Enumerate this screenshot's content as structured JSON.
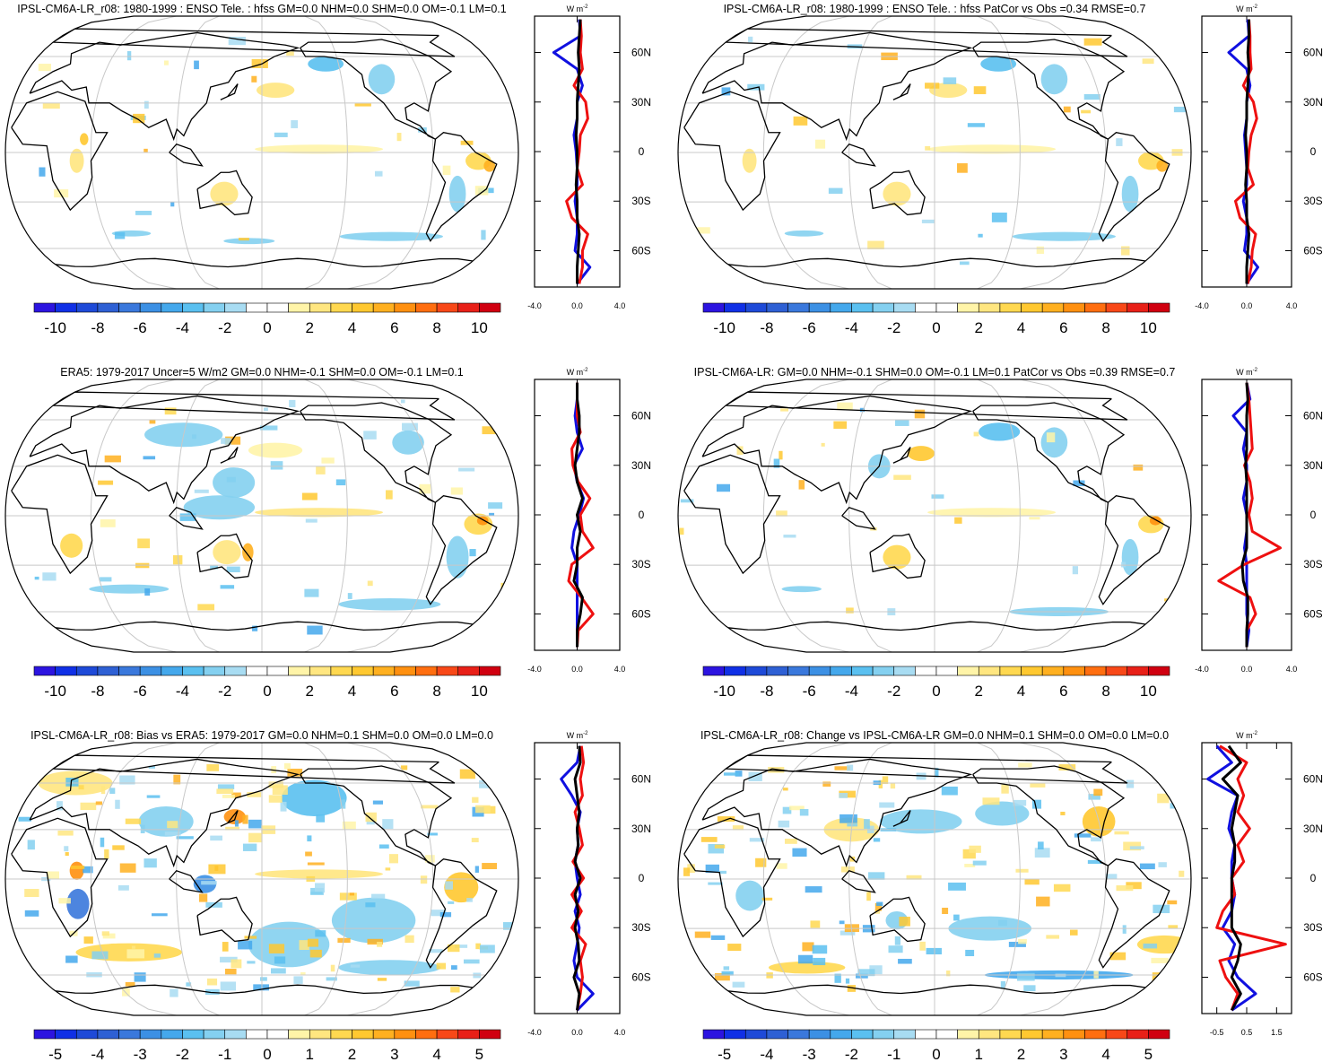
{
  "chart_data": [
    {
      "type": "map",
      "title": "IPSL-CM6A-LR_r08: 1980-1999 : ENSO Tele. : hfss GM=0.0 NHM=0.0 SHM=0.0 OM=-0.1 LM=0.1",
      "colorbar": {
        "clim": [
          -11,
          11
        ],
        "ticks": [
          -10,
          -8,
          -6,
          -4,
          -2,
          0,
          2,
          4,
          6,
          8,
          10
        ],
        "colors": [
          "#2c14e0",
          "#1030e6",
          "#1e4ad8",
          "#2e60d4",
          "#3a78dc",
          "#3c90e4",
          "#44a8ec",
          "#5ac0f0",
          "#84d0f0",
          "#a8dcf2",
          "#ffffff",
          "#ffffff",
          "#fff4a8",
          "#ffe680",
          "#ffd850",
          "#ffc830",
          "#ffb020",
          "#ff9010",
          "#ff6e10",
          "#f84818",
          "#e82018",
          "#d00010"
        ]
      },
      "profile": {
        "units": "W m",
        "units_exp": "-2",
        "xlim": [
          -4,
          4
        ],
        "xticks": [
          {
            "value": -4,
            "label": "-4.0"
          },
          {
            "value": 0,
            "label": "0.0"
          },
          {
            "value": 4,
            "label": "4.0"
          }
        ],
        "ylim": [
          -82,
          82
        ],
        "yticks": [
          {
            "value": -60,
            "label": "60S"
          },
          {
            "value": -30,
            "label": "30S"
          },
          0,
          {
            "value": 30,
            "label": "30N"
          },
          {
            "value": 60,
            "label": "60N"
          }
        ],
        "lats": [
          -80,
          -70,
          -60,
          -50,
          -40,
          -30,
          -20,
          -10,
          0,
          10,
          20,
          30,
          40,
          50,
          60,
          70,
          80
        ],
        "series": [
          {
            "color": "#1010e0",
            "values": [
              0,
              1.2,
              -0.2,
              0,
              0,
              -0.2,
              0,
              0,
              -0.1,
              -0.3,
              0,
              0,
              0.5,
              0,
              -2.2,
              0.3,
              0.2
            ]
          },
          {
            "color": "#ee1010",
            "values": [
              0.2,
              0.5,
              0.5,
              1,
              -0.5,
              -1,
              0.5,
              0,
              0.2,
              0.3,
              1,
              0.8,
              -0.3,
              0.5,
              0.3,
              0.4,
              0.3
            ]
          },
          {
            "color": "#000000",
            "values": [
              0,
              0,
              0.1,
              0.2,
              0,
              0,
              -0.1,
              0,
              0,
              -0.1,
              0,
              0,
              0.1,
              0.2,
              0.1,
              0.2,
              0.3
            ]
          }
        ]
      }
    },
    {
      "type": "map",
      "title": "IPSL-CM6A-LR_r08: 1980-1999 : ENSO Tele. : hfss PatCor vs Obs =0.34 RMSE=0.7",
      "colorbar": {
        "clim": [
          -11,
          11
        ],
        "ticks": [
          -10,
          -8,
          -6,
          -4,
          -2,
          0,
          2,
          4,
          6,
          8,
          10
        ],
        "colors": [
          "#2c14e0",
          "#1030e6",
          "#1e4ad8",
          "#2e60d4",
          "#3a78dc",
          "#3c90e4",
          "#44a8ec",
          "#5ac0f0",
          "#84d0f0",
          "#a8dcf2",
          "#ffffff",
          "#ffffff",
          "#fff4a8",
          "#ffe680",
          "#ffd850",
          "#ffc830",
          "#ffb020",
          "#ff9010",
          "#ff6e10",
          "#f84818",
          "#e82018",
          "#d00010"
        ]
      },
      "profile": {
        "units": "W m",
        "units_exp": "-2",
        "xlim": [
          -4,
          4
        ],
        "xticks": [
          {
            "value": -4,
            "label": "-4.0"
          },
          {
            "value": 0,
            "label": "0.0"
          },
          {
            "value": 4,
            "label": "4.0"
          }
        ],
        "ylim": [
          -82,
          82
        ],
        "yticks": [
          {
            "value": -60,
            "label": "60S"
          },
          {
            "value": -30,
            "label": "30S"
          },
          0,
          {
            "value": 30,
            "label": "30N"
          },
          {
            "value": 60,
            "label": "60N"
          }
        ],
        "lats": [
          -80,
          -70,
          -60,
          -50,
          -40,
          -30,
          -20,
          -10,
          0,
          10,
          20,
          30,
          40,
          50,
          60,
          70,
          80
        ],
        "series": [
          {
            "color": "#1010e0",
            "values": [
              0,
              1,
              -0.2,
              0,
              0,
              -0.3,
              0,
              0,
              -0.1,
              -0.2,
              0,
              0,
              0.3,
              0,
              -1.6,
              0.2,
              0.1
            ]
          },
          {
            "color": "#ee1010",
            "values": [
              0.1,
              0.4,
              0.5,
              0.8,
              -0.6,
              -1,
              0.6,
              0.1,
              0.2,
              0.4,
              0.9,
              0.6,
              -0.3,
              0.4,
              0.3,
              0.3,
              0.2
            ]
          },
          {
            "color": "#000000",
            "values": [
              0,
              0,
              0.1,
              0.2,
              0,
              0,
              -0.1,
              0,
              0,
              -0.1,
              0,
              0,
              0.1,
              0.2,
              0.1,
              0.2,
              0.2
            ]
          }
        ]
      }
    },
    {
      "type": "map",
      "title": "ERA5: 1979-2017 Uncer=5 W/m2 GM=0.0 NHM=-0.1 SHM=0.0 OM=-0.1 LM=0.1",
      "colorbar": {
        "clim": [
          -11,
          11
        ],
        "ticks": [
          -10,
          -8,
          -6,
          -4,
          -2,
          0,
          2,
          4,
          6,
          8,
          10
        ],
        "colors": [
          "#2c14e0",
          "#1030e6",
          "#1e4ad8",
          "#2e60d4",
          "#3a78dc",
          "#3c90e4",
          "#44a8ec",
          "#5ac0f0",
          "#84d0f0",
          "#a8dcf2",
          "#ffffff",
          "#ffffff",
          "#fff4a8",
          "#ffe680",
          "#ffd850",
          "#ffc830",
          "#ffb020",
          "#ff9010",
          "#ff6e10",
          "#f84818",
          "#e82018",
          "#d00010"
        ]
      },
      "profile": {
        "units": "W m",
        "units_exp": "-2",
        "xlim": [
          -4,
          4
        ],
        "xticks": [
          {
            "value": -4,
            "label": "-4.0"
          },
          {
            "value": 0,
            "label": "0.0"
          },
          {
            "value": 4,
            "label": "4.0"
          }
        ],
        "ylim": [
          -82,
          82
        ],
        "yticks": [
          {
            "value": -60,
            "label": "60S"
          },
          {
            "value": -30,
            "label": "30S"
          },
          0,
          {
            "value": 30,
            "label": "30N"
          },
          {
            "value": 60,
            "label": "60N"
          }
        ],
        "lats": [
          -80,
          -70,
          -60,
          -50,
          -40,
          -30,
          -20,
          -10,
          0,
          10,
          20,
          30,
          40,
          50,
          60,
          70,
          80
        ],
        "series": [
          {
            "color": "#1010e0",
            "values": [
              0,
              0,
              0,
              0,
              0,
              0,
              -0.5,
              -0.3,
              0.2,
              0.6,
              0,
              -0.3,
              0.5,
              0,
              -0.2,
              0,
              0
            ]
          },
          {
            "color": "#ee1010",
            "values": [
              0,
              0.1,
              1.5,
              0.4,
              -0.8,
              -0.5,
              1.5,
              0.5,
              0.3,
              1.2,
              0.1,
              -0.4,
              -0.5,
              0.3,
              0,
              0,
              0
            ]
          },
          {
            "color": "#000000",
            "values": [
              0,
              0,
              0.3,
              0.5,
              -0.3,
              0,
              0,
              0.3,
              0,
              0.5,
              0,
              -0.2,
              0,
              0.2,
              0.2,
              0,
              0
            ]
          }
        ]
      }
    },
    {
      "type": "map",
      "title": "IPSL-CM6A-LR: GM=0.0 NHM=-0.1 SHM=0.0 OM=-0.1 LM=0.1 PatCor vs Obs =0.39 RMSE=0.7",
      "colorbar": {
        "clim": [
          -11,
          11
        ],
        "ticks": [
          -10,
          -8,
          -6,
          -4,
          -2,
          0,
          2,
          4,
          6,
          8,
          10
        ],
        "colors": [
          "#2c14e0",
          "#1030e6",
          "#1e4ad8",
          "#2e60d4",
          "#3a78dc",
          "#3c90e4",
          "#44a8ec",
          "#5ac0f0",
          "#84d0f0",
          "#a8dcf2",
          "#ffffff",
          "#ffffff",
          "#fff4a8",
          "#ffe680",
          "#ffd850",
          "#ffc830",
          "#ffb020",
          "#ff9010",
          "#ff6e10",
          "#f84818",
          "#e82018",
          "#d00010"
        ]
      },
      "profile": {
        "units": "W m",
        "units_exp": "-2",
        "xlim": [
          -4,
          4
        ],
        "xticks": [
          {
            "value": -4,
            "label": "-4.0"
          },
          {
            "value": 0,
            "label": "0.0"
          },
          {
            "value": 4,
            "label": "4.0"
          }
        ],
        "ylim": [
          -82,
          82
        ],
        "yticks": [
          {
            "value": -60,
            "label": "60S"
          },
          {
            "value": -30,
            "label": "30S"
          },
          0,
          {
            "value": 30,
            "label": "30N"
          },
          {
            "value": 60,
            "label": "60N"
          }
        ],
        "lats": [
          -80,
          -70,
          -60,
          -50,
          -40,
          -30,
          -20,
          -10,
          0,
          10,
          20,
          30,
          40,
          50,
          60,
          70,
          80
        ],
        "series": [
          {
            "color": "#1010e0",
            "values": [
              0,
              0.2,
              0,
              0,
              0,
              0,
              -0.2,
              0,
              0,
              -0.3,
              0,
              0,
              -0.3,
              0,
              -1.2,
              0.3,
              0
            ]
          },
          {
            "color": "#ee1010",
            "values": [
              0,
              0,
              0.8,
              0.3,
              -2.5,
              -0.2,
              3,
              0.5,
              0.2,
              0.5,
              0.3,
              -0.2,
              0.5,
              0.4,
              0.3,
              0.2,
              0
            ]
          },
          {
            "color": "#000000",
            "values": [
              0,
              0,
              0.1,
              0.1,
              -0.3,
              -0.4,
              0,
              0,
              0,
              0,
              0,
              -0.1,
              0,
              0,
              0,
              0.1,
              0
            ]
          }
        ]
      }
    },
    {
      "type": "map",
      "title": "IPSL-CM6A-LR_r08: Bias vs ERA5: 1979-2017 GM=0.0 NHM=0.1 SHM=0.0 OM=0.0 LM=0.0",
      "colorbar": {
        "clim": [
          -5.5,
          5.5
        ],
        "ticks": [
          -5,
          -4,
          -3,
          -2,
          -1,
          0,
          1,
          2,
          3,
          4,
          5
        ],
        "colors": [
          "#2c14e0",
          "#1030e6",
          "#1e4ad8",
          "#2e60d4",
          "#3a78dc",
          "#3c90e4",
          "#44a8ec",
          "#5ac0f0",
          "#84d0f0",
          "#a8dcf2",
          "#ffffff",
          "#ffffff",
          "#fff4a8",
          "#ffe680",
          "#ffd850",
          "#ffc830",
          "#ffb020",
          "#ff9010",
          "#ff6e10",
          "#f84818",
          "#e82018",
          "#d00010"
        ]
      },
      "profile": {
        "units": "W m",
        "units_exp": "-2",
        "xlim": [
          -4,
          4
        ],
        "xticks": [
          {
            "value": -4,
            "label": "-4.0"
          },
          {
            "value": 0,
            "label": "0.0"
          },
          {
            "value": 4,
            "label": "4.0"
          }
        ],
        "ylim": [
          -82,
          82
        ],
        "yticks": [
          {
            "value": -60,
            "label": "60S"
          },
          {
            "value": -30,
            "label": "30S"
          },
          0,
          {
            "value": 30,
            "label": "30N"
          },
          {
            "value": 60,
            "label": "60N"
          }
        ],
        "lats": [
          -80,
          -70,
          -60,
          -50,
          -40,
          -30,
          -20,
          -10,
          0,
          10,
          20,
          30,
          40,
          50,
          60,
          70,
          80
        ],
        "series": [
          {
            "color": "#1010e0",
            "values": [
              0,
              1.5,
              0,
              -0.3,
              0,
              0.2,
              -0.2,
              0.3,
              0,
              -0.2,
              0.1,
              0,
              0.3,
              -0.5,
              -1.5,
              0,
              0.3
            ]
          },
          {
            "color": "#ee1010",
            "values": [
              0,
              0.3,
              0.5,
              0.3,
              0.8,
              -0.5,
              0.4,
              -0.5,
              0.6,
              -0.4,
              0.5,
              0.2,
              -0.2,
              0.5,
              0.3,
              0.6,
              0.4
            ]
          },
          {
            "color": "#000000",
            "values": [
              0,
              0.2,
              -0.3,
              0.2,
              0.1,
              -0.2,
              0.1,
              -0.2,
              0.3,
              -0.2,
              0.1,
              0,
              0.2,
              0,
              -0.2,
              0.3,
              0.2
            ]
          }
        ]
      }
    },
    {
      "type": "map",
      "title": "IPSL-CM6A-LR_r08: Change vs IPSL-CM6A-LR GM=0.0 NHM=0.1 SHM=0.0 OM=0.0 LM=0.0",
      "colorbar": {
        "clim": [
          -5.5,
          5.5
        ],
        "ticks": [
          -5,
          -4,
          -3,
          -2,
          -1,
          0,
          1,
          2,
          3,
          4,
          5
        ],
        "colors": [
          "#2c14e0",
          "#1030e6",
          "#1e4ad8",
          "#2e60d4",
          "#3a78dc",
          "#3c90e4",
          "#44a8ec",
          "#5ac0f0",
          "#84d0f0",
          "#a8dcf2",
          "#ffffff",
          "#ffffff",
          "#fff4a8",
          "#ffe680",
          "#ffd850",
          "#ffc830",
          "#ffb020",
          "#ff9010",
          "#ff6e10",
          "#f84818",
          "#e82018",
          "#d00010"
        ]
      },
      "profile": {
        "units": "W m",
        "units_exp": "-2",
        "xlim": [
          -1,
          2
        ],
        "xticks": [
          -0.5,
          0.5,
          1.5
        ],
        "ylim": [
          -82,
          82
        ],
        "yticks": [
          {
            "value": -60,
            "label": "60S"
          },
          {
            "value": -30,
            "label": "30S"
          },
          0,
          {
            "value": 30,
            "label": "30N"
          },
          {
            "value": 60,
            "label": "60N"
          }
        ],
        "lats": [
          -80,
          -70,
          -60,
          -50,
          -40,
          -30,
          -20,
          -10,
          0,
          10,
          20,
          30,
          40,
          50,
          60,
          70,
          80
        ],
        "series": [
          {
            "color": "#1010e0",
            "values": [
              0,
              0.8,
              0.2,
              -0.1,
              0.1,
              -0.3,
              0,
              0.1,
              0,
              0,
              0.1,
              -0.1,
              0,
              0.2,
              -0.8,
              0,
              -0.5
            ]
          },
          {
            "color": "#ee1010",
            "values": [
              0,
              0.2,
              -0.2,
              -0.4,
              1.8,
              -0.5,
              -0.3,
              0.1,
              0,
              0.4,
              0.2,
              0.6,
              0.2,
              0.4,
              0.2,
              0.5,
              -0.4
            ]
          },
          {
            "color": "#000000",
            "values": [
              0,
              0.3,
              0,
              0.2,
              0.3,
              0,
              0,
              0,
              0,
              0.1,
              0.1,
              0,
              0.1,
              0.2,
              -0.3,
              0.3,
              -0.1
            ]
          }
        ]
      }
    }
  ]
}
